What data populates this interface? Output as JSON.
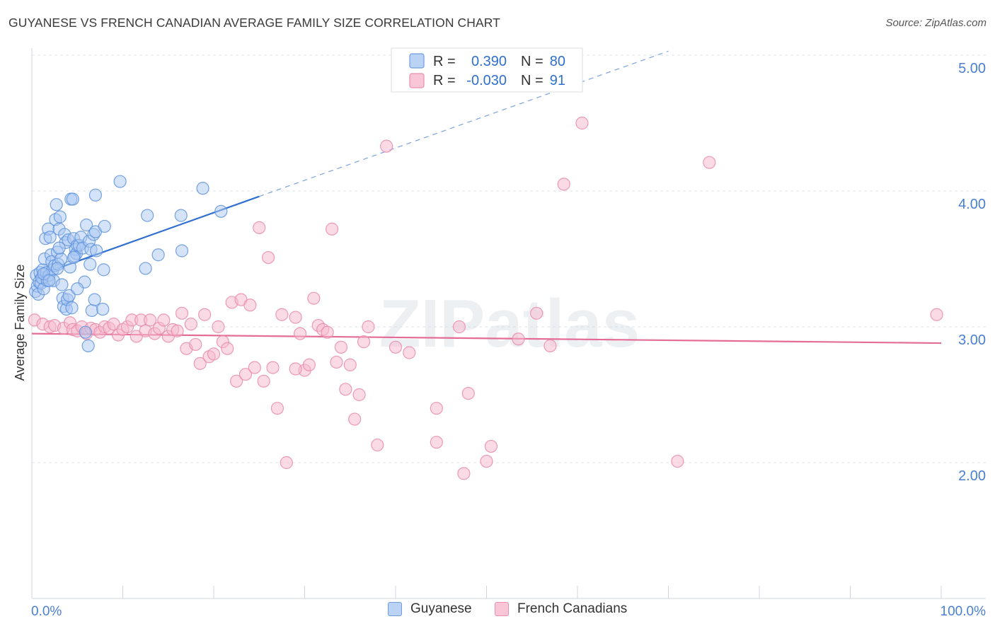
{
  "title": "GUYANESE VS FRENCH CANADIAN AVERAGE FAMILY SIZE CORRELATION CHART",
  "source": "Source: ZipAtlas.com",
  "watermark": "ZIPatlas",
  "colors": {
    "blue": "#2f6fd0",
    "blue_fill": "#a9c8f2",
    "pink": "#e46d95",
    "pink_fill": "#f6b8cc",
    "tick_text": "#4a7fd4",
    "grid": "#dde3ea"
  },
  "legend": {
    "r_label": "R =",
    "n_label": "N =",
    "rows": [
      {
        "r": "0.390",
        "n": "80"
      },
      {
        "r": "-0.030",
        "n": "91"
      }
    ]
  },
  "chart_data": {
    "type": "scatter",
    "title": "GUYANESE VS FRENCH CANADIAN AVERAGE FAMILY SIZE CORRELATION CHART",
    "xlabel": "",
    "ylabel": "Average Family Size",
    "xlim": [
      0,
      100
    ],
    "ylim": [
      1.0,
      5.1
    ],
    "x_tick_labels": [
      "0.0%",
      "100.0%"
    ],
    "y_ticks": [
      2.0,
      3.0,
      4.0,
      5.0
    ],
    "y_tick_labels": [
      "2.00",
      "3.00",
      "4.00",
      "5.00"
    ],
    "series": [
      {
        "name": "Guyanese",
        "r": 0.39,
        "n": 80,
        "trend": {
          "x0": 0.3,
          "y0": 3.37,
          "x1": 25.0,
          "y1": 3.96,
          "dash_to_x": 70.0,
          "dash_to_y": 5.03
        },
        "points": [
          [
            0.4,
            3.26
          ],
          [
            0.5,
            3.38
          ],
          [
            0.6,
            3.3
          ],
          [
            0.7,
            3.24
          ],
          [
            0.8,
            3.33
          ],
          [
            0.9,
            3.4
          ],
          [
            1.0,
            3.32
          ],
          [
            1.1,
            3.36
          ],
          [
            1.2,
            3.42
          ],
          [
            1.3,
            3.28
          ],
          [
            1.4,
            3.5
          ],
          [
            1.5,
            3.65
          ],
          [
            1.6,
            3.4
          ],
          [
            1.7,
            3.34
          ],
          [
            1.8,
            3.72
          ],
          [
            1.9,
            3.38
          ],
          [
            2.0,
            3.66
          ],
          [
            2.1,
            3.53
          ],
          [
            2.2,
            3.48
          ],
          [
            2.3,
            3.42
          ],
          [
            2.4,
            3.34
          ],
          [
            2.5,
            3.45
          ],
          [
            2.6,
            3.79
          ],
          [
            2.7,
            3.9
          ],
          [
            2.8,
            3.55
          ],
          [
            2.9,
            3.46
          ],
          [
            3.0,
            3.72
          ],
          [
            3.1,
            3.81
          ],
          [
            3.2,
            3.5
          ],
          [
            3.3,
            3.31
          ],
          [
            3.4,
            3.21
          ],
          [
            3.5,
            3.15
          ],
          [
            3.6,
            3.68
          ],
          [
            3.7,
            3.62
          ],
          [
            3.8,
            3.13
          ],
          [
            3.9,
            3.2
          ],
          [
            4.0,
            3.64
          ],
          [
            4.1,
            3.23
          ],
          [
            4.2,
            3.44
          ],
          [
            4.3,
            3.94
          ],
          [
            4.4,
            3.14
          ],
          [
            4.5,
            3.94
          ],
          [
            4.6,
            3.65
          ],
          [
            4.7,
            3.52
          ],
          [
            4.8,
            3.57
          ],
          [
            4.9,
            3.54
          ],
          [
            5.0,
            3.6
          ],
          [
            5.2,
            3.6
          ],
          [
            5.4,
            3.66
          ],
          [
            5.6,
            3.58
          ],
          [
            5.8,
            3.33
          ],
          [
            5.9,
            2.96
          ],
          [
            6.0,
            3.75
          ],
          [
            6.2,
            2.86
          ],
          [
            6.3,
            3.63
          ],
          [
            6.4,
            3.46
          ],
          [
            6.5,
            3.57
          ],
          [
            6.6,
            3.12
          ],
          [
            6.8,
            3.68
          ],
          [
            6.9,
            3.2
          ],
          [
            7.0,
            3.7
          ],
          [
            7.1,
            3.56
          ],
          [
            7.0,
            3.97
          ],
          [
            7.8,
            3.13
          ],
          [
            7.9,
            3.42
          ],
          [
            8.0,
            3.74
          ],
          [
            9.7,
            4.07
          ],
          [
            12.5,
            3.43
          ],
          [
            12.7,
            3.82
          ],
          [
            13.9,
            3.53
          ],
          [
            16.4,
            3.82
          ],
          [
            16.5,
            3.56
          ],
          [
            18.8,
            4.02
          ],
          [
            20.8,
            3.85
          ],
          [
            1.3,
            3.39
          ],
          [
            2.8,
            3.43
          ],
          [
            4.6,
            3.51
          ],
          [
            1.9,
            3.34
          ],
          [
            5.0,
            3.28
          ],
          [
            3.0,
            3.58
          ]
        ]
      },
      {
        "name": "French Canadians",
        "r": -0.03,
        "n": 91,
        "trend": {
          "x0": 0.0,
          "y0": 2.95,
          "x1": 100.0,
          "y1": 2.88
        },
        "points": [
          [
            0.3,
            3.05
          ],
          [
            1.2,
            3.02
          ],
          [
            2.0,
            3.0
          ],
          [
            2.5,
            3.01
          ],
          [
            3.5,
            2.99
          ],
          [
            4.2,
            3.03
          ],
          [
            4.5,
            2.98
          ],
          [
            5.0,
            2.97
          ],
          [
            5.5,
            3.0
          ],
          [
            6.0,
            2.95
          ],
          [
            6.5,
            2.99
          ],
          [
            7.0,
            2.98
          ],
          [
            7.5,
            2.96
          ],
          [
            8.0,
            3.0
          ],
          [
            8.5,
            2.99
          ],
          [
            9.0,
            3.02
          ],
          [
            9.5,
            2.94
          ],
          [
            10.0,
            2.98
          ],
          [
            10.5,
            3.0
          ],
          [
            11.0,
            3.05
          ],
          [
            11.5,
            2.93
          ],
          [
            12.0,
            3.05
          ],
          [
            12.5,
            2.97
          ],
          [
            13.0,
            3.05
          ],
          [
            13.5,
            2.95
          ],
          [
            14.0,
            2.99
          ],
          [
            14.5,
            3.05
          ],
          [
            15.0,
            2.93
          ],
          [
            15.5,
            2.98
          ],
          [
            16.0,
            2.97
          ],
          [
            16.5,
            3.1
          ],
          [
            17.0,
            2.84
          ],
          [
            17.5,
            3.02
          ],
          [
            18.0,
            2.87
          ],
          [
            18.5,
            2.73
          ],
          [
            19.0,
            3.09
          ],
          [
            19.5,
            2.78
          ],
          [
            20.0,
            2.8
          ],
          [
            20.5,
            3.0
          ],
          [
            21.0,
            2.89
          ],
          [
            21.5,
            2.84
          ],
          [
            22.0,
            3.18
          ],
          [
            22.5,
            2.6
          ],
          [
            23.0,
            3.2
          ],
          [
            23.5,
            2.65
          ],
          [
            24.0,
            3.16
          ],
          [
            24.5,
            2.7
          ],
          [
            25.0,
            3.73
          ],
          [
            25.5,
            2.6
          ],
          [
            26.0,
            3.51
          ],
          [
            26.5,
            2.7
          ],
          [
            27.0,
            2.4
          ],
          [
            27.5,
            3.09
          ],
          [
            28.0,
            2.0
          ],
          [
            29.0,
            3.07
          ],
          [
            29.5,
            2.95
          ],
          [
            30.0,
            2.68
          ],
          [
            30.5,
            2.72
          ],
          [
            31.0,
            3.21
          ],
          [
            31.5,
            3.01
          ],
          [
            32.0,
            2.98
          ],
          [
            32.5,
            2.96
          ],
          [
            33.0,
            3.72
          ],
          [
            33.5,
            2.74
          ],
          [
            34.0,
            2.85
          ],
          [
            34.5,
            2.54
          ],
          [
            35.0,
            2.72
          ],
          [
            35.5,
            2.32
          ],
          [
            36.0,
            2.5
          ],
          [
            36.5,
            2.89
          ],
          [
            37.0,
            3.0
          ],
          [
            38.0,
            2.13
          ],
          [
            39.0,
            4.33
          ],
          [
            40.0,
            2.85
          ],
          [
            41.5,
            2.81
          ],
          [
            44.5,
            2.4
          ],
          [
            44.5,
            2.15
          ],
          [
            47.0,
            3.0
          ],
          [
            48.0,
            2.51
          ],
          [
            47.5,
            1.92
          ],
          [
            50.0,
            2.01
          ],
          [
            50.5,
            2.12
          ],
          [
            53.5,
            2.91
          ],
          [
            55.5,
            3.1
          ],
          [
            57.0,
            2.86
          ],
          [
            58.5,
            4.05
          ],
          [
            60.5,
            4.5
          ],
          [
            71.0,
            2.01
          ],
          [
            74.5,
            4.21
          ],
          [
            99.5,
            3.09
          ],
          [
            29.0,
            2.69
          ]
        ]
      }
    ]
  }
}
